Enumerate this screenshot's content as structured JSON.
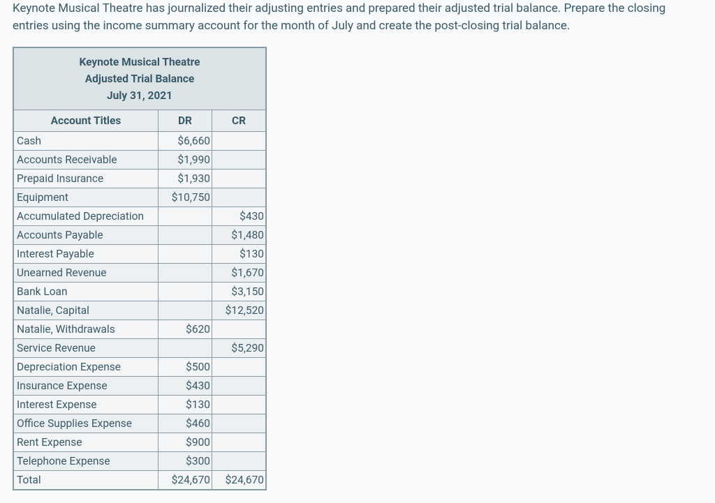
{
  "question": "Keynote Musical Theatre has journalized their adjusting entries and prepared their adjusted trial balance. Prepare the closing entries using the income summary account for the month of July and create the post-closing trial balance.",
  "table": {
    "company": "Keynote Musical Theatre",
    "report": "Adjusted Trial Balance",
    "date": "July 31, 2021",
    "columns": {
      "acct": "Account Titles",
      "dr": "DR",
      "cr": "CR"
    },
    "rows": [
      {
        "acct": "Cash",
        "dr": "$6,660",
        "cr": ""
      },
      {
        "acct": "Accounts Receivable",
        "dr": "$1,990",
        "cr": ""
      },
      {
        "acct": "Prepaid Insurance",
        "dr": "$1,930",
        "cr": ""
      },
      {
        "acct": "Equipment",
        "dr": "$10,750",
        "cr": ""
      },
      {
        "acct": "Accumulated Depreciation",
        "dr": "",
        "cr": "$430"
      },
      {
        "acct": "Accounts Payable",
        "dr": "",
        "cr": "$1,480"
      },
      {
        "acct": "Interest Payable",
        "dr": "",
        "cr": "$130"
      },
      {
        "acct": "Unearned Revenue",
        "dr": "",
        "cr": "$1,670"
      },
      {
        "acct": "Bank Loan",
        "dr": "",
        "cr": "$3,150"
      },
      {
        "acct": "Natalie, Capital",
        "dr": "",
        "cr": "$12,520"
      },
      {
        "acct": "Natalie, Withdrawals",
        "dr": "$620",
        "cr": ""
      },
      {
        "acct": "Service Revenue",
        "dr": "",
        "cr": "$5,290"
      },
      {
        "acct": "Depreciation Expense",
        "dr": "$500",
        "cr": ""
      },
      {
        "acct": "Insurance Expense",
        "dr": "$430",
        "cr": ""
      },
      {
        "acct": "Interest Expense",
        "dr": "$130",
        "cr": ""
      },
      {
        "acct": "Office Supplies Expense",
        "dr": "$460",
        "cr": ""
      },
      {
        "acct": "Rent Expense",
        "dr": "$900",
        "cr": ""
      },
      {
        "acct": "Telephone Expense",
        "dr": "$300",
        "cr": ""
      },
      {
        "acct": "Total",
        "dr": "$24,670",
        "cr": "$24,670"
      }
    ],
    "style": {
      "border_color": "#889aa3",
      "header_bg": "#dce3e6",
      "subheader_bg": "#e8edef",
      "zebra_a": "#f3f5f6",
      "zebra_b": "#ecf0f2",
      "text_color": "#3a5a6a",
      "font_size_body": 15.5,
      "font_size_question": 17
    }
  }
}
